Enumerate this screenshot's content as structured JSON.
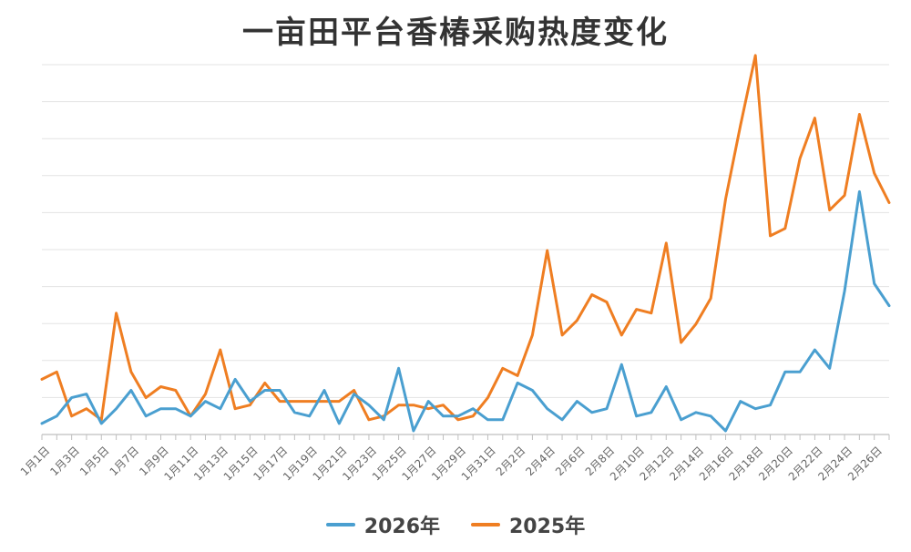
{
  "chart_data": {
    "type": "line",
    "title": "一亩田平台香椿采购热度变化",
    "xlabel": "",
    "ylabel": "",
    "ylim": [
      0,
      100
    ],
    "grid": true,
    "legend_position": "bottom-center",
    "categories": [
      "1月1日",
      "1月2日",
      "1月3日",
      "1月4日",
      "1月5日",
      "1月6日",
      "1月7日",
      "1月8日",
      "1月9日",
      "1月10日",
      "1月11日",
      "1月12日",
      "1月13日",
      "1月14日",
      "1月15日",
      "1月16日",
      "1月17日",
      "1月18日",
      "1月19日",
      "1月20日",
      "1月21日",
      "1月22日",
      "1月23日",
      "1月24日",
      "1月25日",
      "1月26日",
      "1月27日",
      "1月28日",
      "1月29日",
      "1月30日",
      "1月31日",
      "2月1日",
      "2月2日",
      "2月3日",
      "2月4日",
      "2月5日",
      "2月6日",
      "2月7日",
      "2月8日",
      "2月9日",
      "2月10日",
      "2月11日",
      "2月12日",
      "2月13日",
      "2月14日",
      "2月15日",
      "2月16日",
      "2月17日",
      "2月18日",
      "2月19日",
      "2月20日",
      "2月21日",
      "2月22日",
      "2月23日",
      "2月24日",
      "2月25日",
      "2月26日",
      "2月27日"
    ],
    "x_tick_labels": [
      "1月1日",
      "1月3日",
      "1月5日",
      "1月7日",
      "1月9日",
      "1月11日",
      "1月13日",
      "1月15日",
      "1月17日",
      "1月19日",
      "1月21日",
      "1月23日",
      "1月25日",
      "1月27日",
      "1月29日",
      "1月31日",
      "2月2日",
      "2月4日",
      "2月6日",
      "2月8日",
      "2月10日",
      "2月12日",
      "2月14日",
      "2月16日",
      "2月18日",
      "2月20日",
      "2月22日",
      "2月24日",
      "2月26日"
    ],
    "series": [
      {
        "name": "2026年",
        "color": "#4A9FD0",
        "values": [
          3,
          5,
          10,
          11,
          3,
          7,
          12,
          5,
          7,
          7,
          5,
          9,
          7,
          15,
          9,
          12,
          12,
          6,
          5,
          12,
          3,
          11,
          8,
          4,
          18,
          1,
          9,
          5,
          5,
          7,
          4,
          4,
          14,
          12,
          7,
          4,
          9,
          6,
          7,
          19,
          5,
          6,
          13,
          4,
          6,
          5,
          1,
          9,
          7,
          8,
          17,
          17,
          23,
          18,
          39,
          66,
          41,
          35
        ]
      },
      {
        "name": "2025年",
        "color": "#EF7E22",
        "values": [
          15,
          17,
          5,
          7,
          4,
          33,
          17,
          10,
          13,
          12,
          5,
          11,
          23,
          7,
          8,
          14,
          9,
          9,
          9,
          9,
          9,
          12,
          4,
          5,
          8,
          8,
          7,
          8,
          4,
          5,
          10,
          18,
          16,
          27,
          50,
          27,
          31,
          38,
          36,
          27,
          34,
          33,
          52,
          25,
          30,
          37,
          64,
          84,
          103,
          54,
          56,
          75,
          86,
          61,
          65,
          87,
          71,
          63
        ]
      }
    ]
  }
}
